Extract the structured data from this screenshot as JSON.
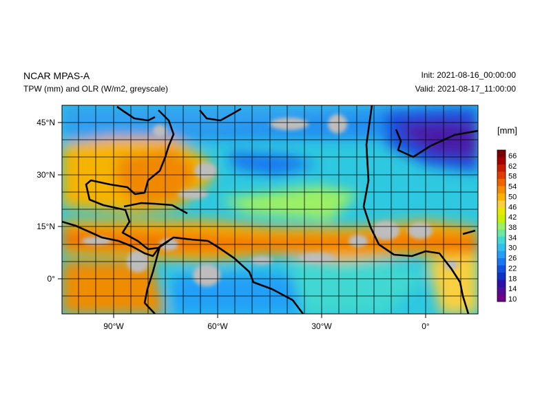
{
  "header": {
    "model": "NCAR MPAS-A",
    "fields": "TPW (mm) and OLR (W/m2, greyscale)",
    "init": "Init: 2021-08-16_00:00:00",
    "valid": "Valid: 2021-08-17_11:00:00"
  },
  "colorbar": {
    "unit": "[mm]",
    "labels": [
      "66",
      "62",
      "58",
      "54",
      "50",
      "46",
      "42",
      "38",
      "34",
      "30",
      "26",
      "22",
      "18",
      "14",
      "10"
    ],
    "colors": [
      "#7a0000",
      "#a50000",
      "#c81a00",
      "#e03c00",
      "#f06400",
      "#f88c00",
      "#fcb000",
      "#f8d040",
      "#e8e800",
      "#c8f000",
      "#9cf064",
      "#6ce8a0",
      "#40d8d0",
      "#30c0f0",
      "#20a0f8",
      "#1878f0",
      "#1050e0",
      "#1030c0",
      "#2c10a8",
      "#500c98",
      "#700088"
    ]
  },
  "axes": {
    "x_ticks": [
      "90°W",
      "60°W",
      "30°W",
      "0°"
    ],
    "y_ticks": [
      "45°N",
      "30°N",
      "15°N",
      "0°"
    ]
  }
}
